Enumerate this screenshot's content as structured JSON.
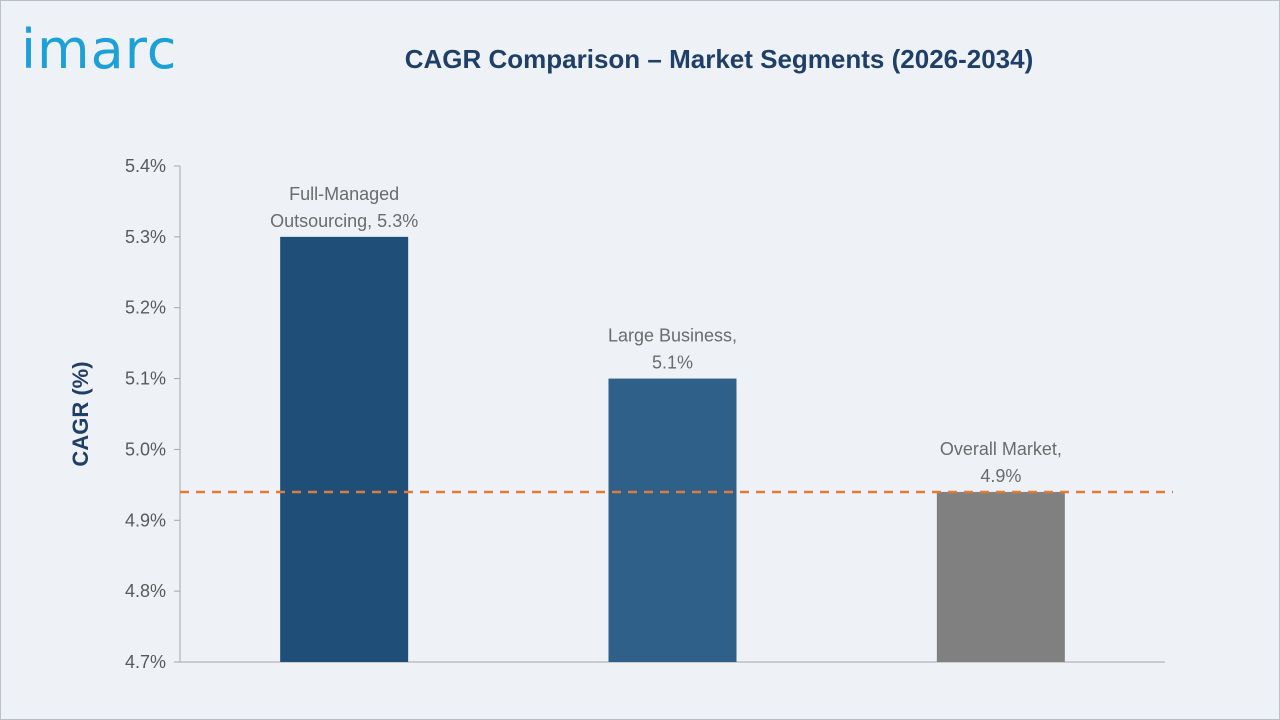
{
  "logo": {
    "text": "imarc"
  },
  "chart_data": {
    "type": "bar",
    "title": "CAGR Comparison – Market Segments (2026-2034)",
    "xlabel": "",
    "ylabel": "CAGR (%)",
    "ylim": [
      4.7,
      5.4
    ],
    "yticks": [
      "4.7%",
      "4.8%",
      "4.9%",
      "5.0%",
      "5.1%",
      "5.2%",
      "5.3%",
      "5.4%"
    ],
    "categories": [
      "Full-Managed Outsourcing",
      "Large Business",
      "Overall Market"
    ],
    "values": [
      5.3,
      5.1,
      4.94
    ],
    "data_labels": [
      [
        "Full-Managed",
        "Outsourcing, 5.3%"
      ],
      [
        "Large Business,",
        "5.1%"
      ],
      [
        "Overall Market,",
        "4.9%"
      ]
    ],
    "colors": [
      "#1f4e79",
      "#2e6089",
      "#808080"
    ],
    "reference_line": {
      "value": 4.94,
      "color": "#e07b39",
      "style": "dashed"
    },
    "grid": false
  }
}
